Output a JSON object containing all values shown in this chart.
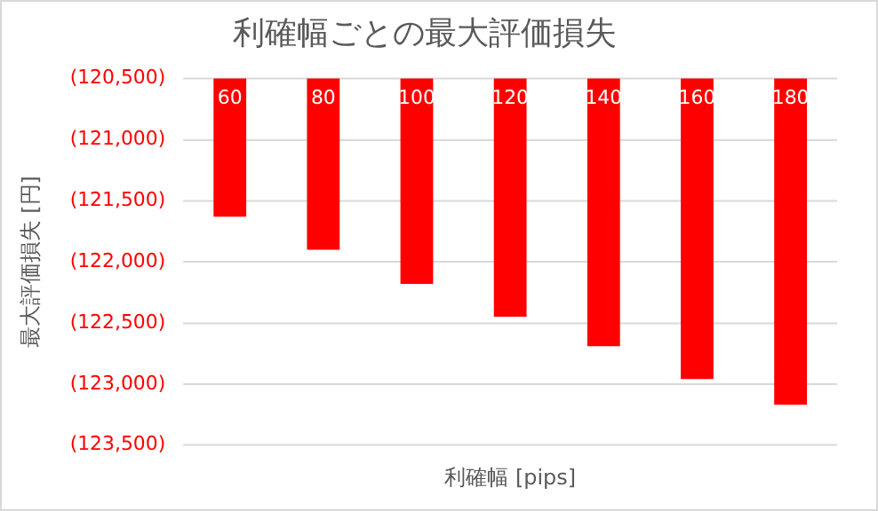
{
  "chart_data": {
    "type": "bar",
    "title": "利確幅ごとの最大評価損失",
    "xlabel": "利確幅 [pips]",
    "ylabel": "最大評価損失 [円]",
    "categories": [
      "60",
      "80",
      "100",
      "120",
      "140",
      "160",
      "180"
    ],
    "values": [
      -121630,
      -121900,
      -122180,
      -122450,
      -122690,
      -122960,
      -123170
    ],
    "color": "#ff0000",
    "ylim": [
      -123500,
      -120500
    ],
    "yticks": [
      {
        "value": -120500,
        "label": "(120,500)"
      },
      {
        "value": -121000,
        "label": "(121,000)"
      },
      {
        "value": -121500,
        "label": "(121,500)"
      },
      {
        "value": -122000,
        "label": "(122,000)"
      },
      {
        "value": -122500,
        "label": "(122,500)"
      },
      {
        "value": -123000,
        "label": "(123,000)"
      },
      {
        "value": -123500,
        "label": "(123,500)"
      }
    ],
    "grid": "y",
    "legend": false
  }
}
